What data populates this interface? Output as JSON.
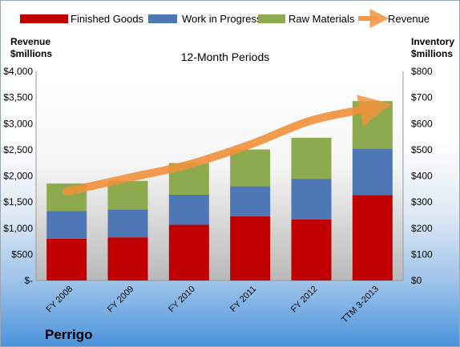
{
  "chart_data": {
    "type": "bar",
    "title": "12-Month Periods",
    "categories": [
      "FY 2008",
      "FY 2009",
      "FY 2010",
      "FY 2011",
      "FY 2012",
      "TTM 3-2013"
    ],
    "series": [
      {
        "name": "Finished Goods",
        "axis": "right",
        "color": "#c00000",
        "values": [
          160,
          165,
          213,
          245,
          233,
          327
        ]
      },
      {
        "name": "Work in Progress",
        "axis": "right",
        "color": "#4f77b5",
        "values": [
          106,
          106,
          115,
          115,
          156,
          177
        ]
      },
      {
        "name": "Raw Materials",
        "axis": "right",
        "color": "#8dab4e",
        "values": [
          105,
          110,
          121,
          141,
          157,
          182
        ]
      },
      {
        "name": "Revenue",
        "axis": "left",
        "color": "#f0913c",
        "type": "line",
        "values": [
          1700,
          1960,
          2220,
          2600,
          3060,
          3300
        ]
      }
    ],
    "left_axis": {
      "label_line1": "Revenue",
      "label_line2": "$millions",
      "ylim": [
        0,
        4000
      ],
      "ticks": [
        "$-",
        "$500",
        "$1,000",
        "$1,500",
        "$2,000",
        "$2,500",
        "$3,000",
        "$3,500",
        "$4,000"
      ]
    },
    "right_axis": {
      "label_line1": "Inventory",
      "label_line2": "$millions",
      "ylim": [
        0,
        800
      ],
      "ticks": [
        "$0",
        "$100",
        "$200",
        "$300",
        "$400",
        "$500",
        "$600",
        "$700",
        "$800"
      ]
    },
    "legend_position": "top",
    "grid": false,
    "stacked": true
  },
  "company": "Perrigo"
}
